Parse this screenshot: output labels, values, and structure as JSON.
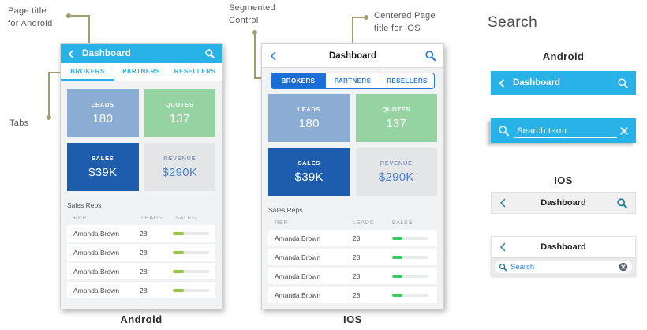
{
  "annotations": {
    "page_title_android": {
      "line1": "Page title",
      "line2": "for Android"
    },
    "tabs": {
      "line1": "Tabs"
    },
    "segmented_control": {
      "line1": "Segmented",
      "line2": "Control"
    },
    "centered_title_ios": {
      "line1": "Centered Page",
      "line2": "title for IOS"
    }
  },
  "android": {
    "platform_label": "Android",
    "header": {
      "title": "Dashboard"
    },
    "tabs": [
      {
        "label": "BROKERS",
        "active": true
      },
      {
        "label": "PARTNERS",
        "active": false
      },
      {
        "label": "RESELLERS",
        "active": false
      }
    ],
    "cards": [
      {
        "label": "LEADS",
        "value": "180"
      },
      {
        "label": "QUOTES",
        "value": "137"
      },
      {
        "label": "SALES",
        "value": "$39K"
      },
      {
        "label": "REVENUE",
        "value": "$290K"
      }
    ],
    "sales": {
      "title": "Sales Reps",
      "columns": [
        "REP",
        "LEADS",
        "SALES"
      ],
      "rows": [
        {
          "rep": "Amanda Brown",
          "leads": "28",
          "sales_pct": 30
        },
        {
          "rep": "Amanda Brown",
          "leads": "28",
          "sales_pct": 30
        },
        {
          "rep": "Amanda Brown",
          "leads": "28",
          "sales_pct": 30
        },
        {
          "rep": "Amanda Brown",
          "leads": "28",
          "sales_pct": 30
        }
      ]
    }
  },
  "ios": {
    "platform_label": "IOS",
    "header": {
      "title": "Dashboard"
    },
    "segments": [
      {
        "label": "BROKERS",
        "active": true
      },
      {
        "label": "PARTNERS",
        "active": false
      },
      {
        "label": "RESELLERS",
        "active": false
      }
    ],
    "cards": [
      {
        "label": "LEADS",
        "value": "180"
      },
      {
        "label": "QUOTES",
        "value": "137"
      },
      {
        "label": "SALES",
        "value": "$39K"
      },
      {
        "label": "REVENUE",
        "value": "$290K"
      }
    ],
    "sales": {
      "title": "Sales Reps",
      "columns": [
        "REP",
        "LEADS",
        "SALES"
      ],
      "rows": [
        {
          "rep": "Amanda Brown",
          "leads": "28",
          "sales_pct": 30
        },
        {
          "rep": "Amanda Brown",
          "leads": "28",
          "sales_pct": 30
        },
        {
          "rep": "Amanda Brown",
          "leads": "28",
          "sales_pct": 30
        },
        {
          "rep": "Amanda Brown",
          "leads": "28",
          "sales_pct": 30
        }
      ]
    }
  },
  "search_panel": {
    "title": "Search",
    "android": {
      "heading": "Android",
      "nav_title": "Dashboard",
      "search_term": "Search term"
    },
    "ios": {
      "heading": "IOS",
      "nav_title": "Dashboard",
      "nav_title2": "Dashboard",
      "search_placeholder": "Search"
    }
  },
  "colors": {
    "android_accent": "#29b2e8",
    "ios_accent": "#2478dd",
    "ios_segment_active": "#1b6ed6",
    "card_steel_blue": "#8badd3",
    "card_green": "#95d3a3",
    "card_dark_blue": "#1e5dad",
    "card_gray": "#e3e5e7",
    "revenue_text": "#4d82cc",
    "android_progress": "#97c93f",
    "ios_progress": "#35cc5e",
    "ios_search_teal": "#1d7f9d",
    "annotation_line": "#a69d6f"
  }
}
